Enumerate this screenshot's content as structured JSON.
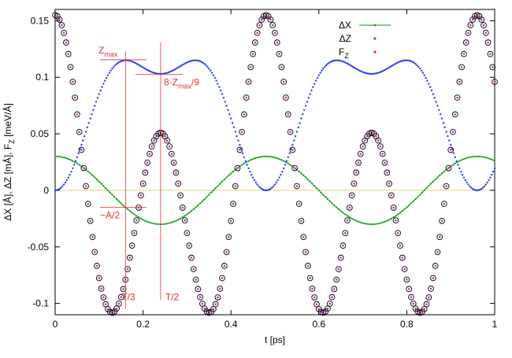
{
  "chart_data": {
    "type": "scatter",
    "xlabel": "t [ps]",
    "ylabel": "ΔX [Å], ΔZ [mÅ], F",
    "ylabel_sub": "Z",
    "ylabel_unit": " [meV/Å]",
    "xlim": [
      0,
      1
    ],
    "ylim": [
      -0.11,
      0.16
    ],
    "x_ticks": [
      0,
      0.2,
      0.4,
      0.6,
      0.8,
      1
    ],
    "x_tick_labels": [
      "0",
      "0.2",
      "0.4",
      "0.6",
      "0.8",
      "1"
    ],
    "y_ticks": [
      -0.1,
      -0.05,
      0,
      0.05,
      0.1,
      0.15
    ],
    "y_tick_labels": [
      "-0.1",
      "-0.05",
      "0",
      "0.05",
      "0.1",
      "0.15"
    ],
    "legend_position": "top-right",
    "series": [
      {
        "name": "ΔX",
        "color": "#109a10",
        "style": "line-points",
        "amplitude": 0.03,
        "period_ps": 0.48,
        "phase": "cosine"
      },
      {
        "name": "ΔZ",
        "color": "#2a3cf0",
        "style": "points",
        "expression": "0.102 * (1 - cos(4πt/0.48))^... (periodic, max 0.115, local min 0.103 at T/2, zero at T)",
        "max": 0.115,
        "mid_value": 0.103,
        "period_ps": 0.48
      },
      {
        "name": "F",
        "name_sub": "Z",
        "color": "#d020c0",
        "style": "points",
        "min": -0.105,
        "max": 0.155,
        "mid_peak": 0.051,
        "period_ps": 0.48
      }
    ],
    "overlay": {
      "color": "#000000",
      "style": "open-circles",
      "follows": "F"
    },
    "reference_line": {
      "y": 0,
      "color": "#e8d27a"
    },
    "annotations": {
      "color": "#e03030",
      "zmax_label": "Z",
      "zmax_sub": "max",
      "eight_zmax_prefix": "8·Z",
      "eight_zmax_sub": "max",
      "eight_zmax_suffix": "/9",
      "minus_a_half": "−A/2",
      "t_third": "T/3",
      "t_half": "T/2",
      "t_third_x": 0.16,
      "t_half_x": 0.24,
      "zmax_y": 0.1155,
      "eight_zmax_y": 0.1027,
      "minus_a_half_y": -0.015
    }
  }
}
